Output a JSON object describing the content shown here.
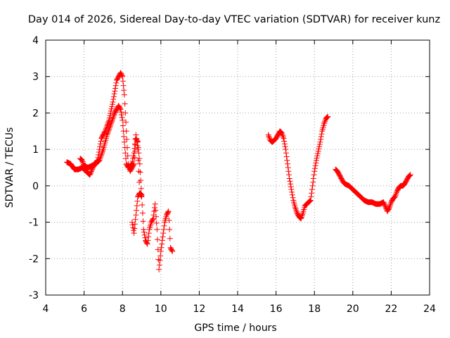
{
  "chart_data": {
    "type": "scatter",
    "title": "Day 014 of 2026, Sidereal Day-to-day VTEC variation (SDTVAR) for receiver kunz",
    "xlabel": "GPS time / hours",
    "ylabel": "SDTVAR / TECUs",
    "xlim": [
      4,
      24
    ],
    "ylim": [
      -3,
      4
    ],
    "xticks": [
      "4",
      "6",
      "8",
      "10",
      "12",
      "14",
      "16",
      "18",
      "20",
      "22",
      "24"
    ],
    "yticks": [
      "4",
      "3",
      "2",
      "1",
      "0",
      "-1",
      "-2",
      "-3"
    ],
    "grid": true,
    "marker": "plus",
    "color": "#ff0000",
    "series": [
      {
        "name": "segment-1",
        "x": [
          5.1,
          5.3,
          5.5,
          5.7,
          5.9,
          6.1,
          6.3,
          6.5,
          6.7,
          6.9,
          7.1,
          7.3,
          7.5,
          7.7,
          7.9,
          8.0,
          8.1,
          8.2,
          8.3,
          8.4,
          8.5,
          8.6,
          8.7,
          8.8,
          8.9,
          9.0,
          9.1,
          9.2,
          9.3,
          9.4,
          9.5,
          9.6,
          9.7,
          9.8,
          9.9,
          10.0,
          10.1,
          10.2,
          10.3,
          10.4,
          10.5,
          10.6
        ],
        "y": [
          0.65,
          0.6,
          0.45,
          0.45,
          0.5,
          0.4,
          0.3,
          0.55,
          0.7,
          1.3,
          1.5,
          1.8,
          2.3,
          2.9,
          3.1,
          3.0,
          2.5,
          1.5,
          0.6,
          0.4,
          0.5,
          0.6,
          1.3,
          1.2,
          0.6,
          -0.3,
          -1.2,
          -1.5,
          -1.6,
          -1.2,
          -1.0,
          -0.9,
          -0.5,
          -1.2,
          -2.3,
          -1.8,
          -1.4,
          -1.0,
          -0.8,
          -0.7,
          -1.7,
          -1.8
        ]
      },
      {
        "name": "segment-1b",
        "x": [
          5.8,
          5.9,
          6.0,
          6.2,
          6.4,
          6.6,
          6.8,
          7.0,
          7.2,
          7.4,
          7.6,
          7.8,
          7.9,
          8.0,
          8.1,
          8.2,
          8.3,
          8.5,
          8.6,
          8.7,
          8.8,
          8.9,
          9.0
        ],
        "y": [
          0.75,
          0.7,
          0.55,
          0.5,
          0.55,
          0.6,
          0.7,
          1.0,
          1.4,
          1.7,
          2.0,
          2.2,
          2.1,
          1.8,
          1.2,
          0.6,
          0.5,
          0.6,
          0.9,
          1.4,
          1.0,
          -0.2,
          -0.3
        ]
      },
      {
        "name": "segment-1c",
        "x": [
          8.5,
          8.6,
          8.7,
          8.8,
          8.9,
          9.0
        ],
        "y": [
          -1.0,
          -1.3,
          -0.8,
          -0.3,
          -0.2,
          -0.25
        ]
      },
      {
        "name": "segment-2",
        "x": [
          15.6,
          15.7,
          15.8,
          15.9,
          16.0,
          16.1,
          16.2,
          16.3,
          16.4,
          16.5,
          16.6,
          16.7,
          16.8,
          16.9,
          17.0,
          17.1,
          17.2,
          17.3,
          17.4,
          17.5,
          17.6,
          17.7,
          17.8,
          17.9,
          18.0,
          18.1,
          18.2,
          18.3,
          18.4,
          18.5,
          18.6,
          18.7
        ],
        "y": [
          1.4,
          1.25,
          1.2,
          1.25,
          1.3,
          1.4,
          1.5,
          1.45,
          1.3,
          1.0,
          0.6,
          0.2,
          -0.1,
          -0.4,
          -0.6,
          -0.75,
          -0.85,
          -0.9,
          -0.75,
          -0.55,
          -0.5,
          -0.45,
          -0.4,
          0.0,
          0.4,
          0.7,
          0.95,
          1.2,
          1.5,
          1.7,
          1.85,
          1.9
        ]
      },
      {
        "name": "segment-3",
        "x": [
          19.1,
          19.2,
          19.3,
          19.4,
          19.5,
          19.6,
          19.8,
          20.0,
          20.2,
          20.4,
          20.6,
          20.8,
          21.0,
          21.2,
          21.4,
          21.6,
          21.8,
          21.9,
          22.0,
          22.1,
          22.2,
          22.3,
          22.4,
          22.5,
          22.6,
          22.7,
          22.8,
          22.9,
          23.0
        ],
        "y": [
          0.45,
          0.4,
          0.3,
          0.2,
          0.1,
          0.05,
          0.0,
          -0.1,
          -0.2,
          -0.3,
          -0.4,
          -0.45,
          -0.45,
          -0.5,
          -0.5,
          -0.45,
          -0.7,
          -0.6,
          -0.45,
          -0.35,
          -0.3,
          -0.15,
          -0.05,
          0.0,
          0.0,
          0.05,
          0.15,
          0.25,
          0.3
        ]
      }
    ]
  }
}
